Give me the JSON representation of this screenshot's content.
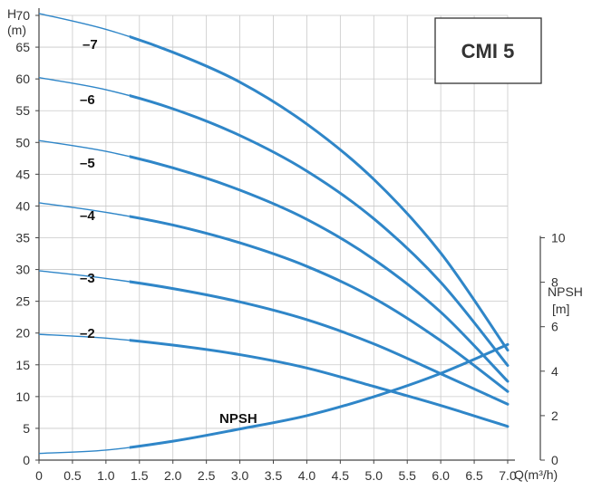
{
  "chart_data": {
    "type": "line",
    "title": "CMI 5",
    "xlabel": "Q(m³/h)",
    "ylabel": "H",
    "ylabel_unit": "(m)",
    "y2label": "NPSH",
    "y2label_unit": "[m]",
    "xlim": [
      0,
      7
    ],
    "ylim": [
      0,
      70
    ],
    "y2lim": [
      0,
      10
    ],
    "grid": true,
    "line_color": "#2f86c8",
    "x_ticks": [
      "0",
      "0.5",
      "1.0",
      "1.5",
      "2.0",
      "2.5",
      "3.0",
      "3.5",
      "4.0",
      "4.5",
      "5.0",
      "5.5",
      "6.0",
      "6.5",
      "7.0"
    ],
    "y_ticks": [
      "0",
      "5",
      "10",
      "15",
      "20",
      "25",
      "30",
      "35",
      "40",
      "45",
      "50",
      "55",
      "60",
      "65",
      "70"
    ],
    "y2_ticks": [
      "0",
      "2",
      "4",
      "6",
      "8",
      "10"
    ],
    "series": [
      {
        "name": "–7",
        "axis": "H",
        "x": [
          0,
          1,
          2,
          3,
          4,
          5,
          6,
          7
        ],
        "y": [
          70.3,
          67.8,
          64.2,
          59.5,
          52.9,
          44.2,
          32.6,
          17.3
        ]
      },
      {
        "name": "–6",
        "axis": "H",
        "x": [
          0,
          1,
          2,
          3,
          4,
          5,
          6,
          7
        ],
        "y": [
          60.2,
          58.3,
          55.3,
          51.1,
          45.5,
          38.0,
          28.0,
          14.9
        ]
      },
      {
        "name": "–5",
        "axis": "H",
        "x": [
          0,
          1,
          2,
          3,
          4,
          5,
          6,
          7
        ],
        "y": [
          50.3,
          48.6,
          46.0,
          42.5,
          37.9,
          31.6,
          23.3,
          12.4
        ]
      },
      {
        "name": "–4",
        "axis": "H",
        "x": [
          0,
          1,
          2,
          3,
          4,
          5,
          6,
          7
        ],
        "y": [
          40.5,
          39.0,
          37.0,
          34.2,
          30.5,
          25.5,
          18.8,
          10.8
        ]
      },
      {
        "name": "–3",
        "axis": "H",
        "x": [
          0,
          1,
          2,
          3,
          4,
          5,
          6,
          7
        ],
        "y": [
          29.8,
          28.6,
          27.0,
          24.9,
          22.1,
          18.3,
          13.6,
          8.8
        ]
      },
      {
        "name": "–2",
        "axis": "H",
        "x": [
          0,
          1,
          2,
          3,
          4,
          5,
          6,
          7
        ],
        "y": [
          19.8,
          19.2,
          18.1,
          16.6,
          14.5,
          11.6,
          8.6,
          5.3
        ]
      },
      {
        "name": "NPSH",
        "axis": "NPSH",
        "x": [
          0,
          1,
          2,
          3,
          4,
          5,
          6,
          7
        ],
        "y": [
          0.3,
          0.45,
          0.85,
          1.4,
          2.0,
          2.85,
          3.9,
          5.2
        ]
      }
    ]
  }
}
